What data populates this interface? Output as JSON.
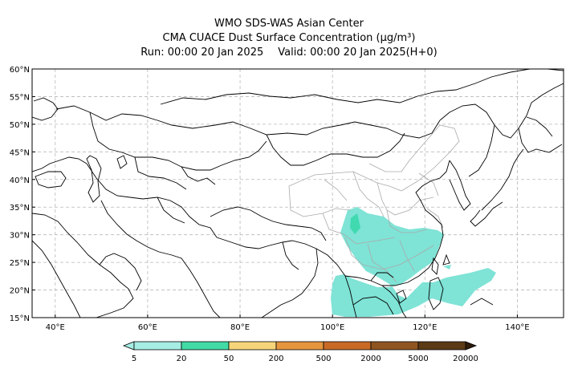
{
  "header": {
    "line1": "WMO SDS-WAS Asian Center",
    "line2": "CMA CUACE Dust Surface Concentration (μg/m³)",
    "run": "Run: 00:00 20 Jan 2025",
    "valid": "Valid: 00:00 20 Jan 2025(H+0)"
  },
  "map": {
    "lon_range": [
      35,
      150
    ],
    "lat_range": [
      15,
      60
    ],
    "lat_ticks": [
      {
        "value": 60,
        "label": "60°N"
      },
      {
        "value": 55,
        "label": "55°N"
      },
      {
        "value": 50,
        "label": "50°N"
      },
      {
        "value": 45,
        "label": "45°N"
      },
      {
        "value": 40,
        "label": "40°N"
      },
      {
        "value": 35,
        "label": "35°N"
      },
      {
        "value": 30,
        "label": "30°N"
      },
      {
        "value": 25,
        "label": "25°N"
      },
      {
        "value": 20,
        "label": "20°N"
      },
      {
        "value": 15,
        "label": "15°N"
      }
    ],
    "lon_ticks": [
      {
        "value": 40,
        "label": "40°E"
      },
      {
        "value": 60,
        "label": "60°E"
      },
      {
        "value": 80,
        "label": "80°E"
      },
      {
        "value": 100,
        "label": "100°E"
      },
      {
        "value": 120,
        "label": "120°E"
      },
      {
        "value": 140,
        "label": "140°E"
      }
    ],
    "grid": true,
    "dust_color": "#7fe3d6",
    "dust_core_color": "#40d9b0"
  },
  "colorbar": {
    "labels": [
      "5",
      "20",
      "50",
      "200",
      "500",
      "2000",
      "5000",
      "20000"
    ],
    "colors": [
      "#a6ede4",
      "#42dba6",
      "#f6d57a",
      "#e5963f",
      "#c86a25",
      "#8f5520",
      "#5b3a16",
      "#2d1b0b"
    ]
  }
}
